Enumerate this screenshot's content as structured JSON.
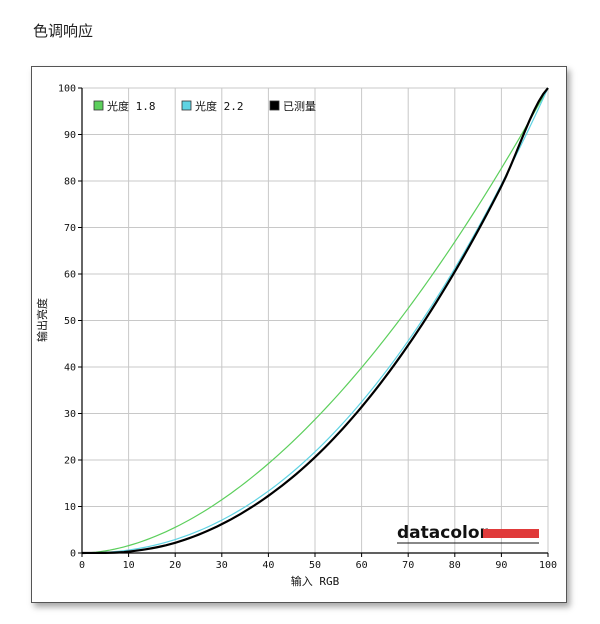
{
  "page": {
    "title": "色调响应"
  },
  "chart_data": {
    "type": "line",
    "xlabel": "输入 RGB",
    "ylabel": "输出亮度",
    "xlim": [
      0,
      100
    ],
    "ylim": [
      0,
      100
    ],
    "x_ticks": [
      0,
      10,
      20,
      30,
      40,
      50,
      60,
      70,
      80,
      90,
      100
    ],
    "y_ticks": [
      0,
      10,
      20,
      30,
      40,
      50,
      60,
      70,
      80,
      90,
      100
    ],
    "grid": true,
    "legend_position": "top-left",
    "series": [
      {
        "name": "光度 1.8",
        "color": "#5ccf5c",
        "gamma": 1.8,
        "x": [
          0,
          10,
          20,
          30,
          40,
          50,
          60,
          70,
          80,
          90,
          100
        ],
        "y": [
          0,
          1.6,
          5.5,
          11.5,
          19.2,
          28.7,
          39.9,
          52.6,
          66.9,
          82.7,
          100
        ]
      },
      {
        "name": "光度 2.2",
        "color": "#5fd3e3",
        "gamma": 2.2,
        "x": [
          0,
          10,
          20,
          30,
          40,
          50,
          60,
          70,
          80,
          90,
          100
        ],
        "y": [
          0,
          0.6,
          2.9,
          7.1,
          13.3,
          21.8,
          32.5,
          45.6,
          61.2,
          79.3,
          100
        ]
      },
      {
        "name": "已测量",
        "color": "#000000",
        "x": [
          0,
          10,
          20,
          30,
          40,
          50,
          60,
          70,
          80,
          90,
          100
        ],
        "y": [
          0,
          0.3,
          2.2,
          6.2,
          12.3,
          20.6,
          31.4,
          44.7,
          60.5,
          78.9,
          100
        ]
      }
    ]
  },
  "branding": {
    "logo_text": "datacolor",
    "logo_bar_color": "#e03a3a"
  }
}
